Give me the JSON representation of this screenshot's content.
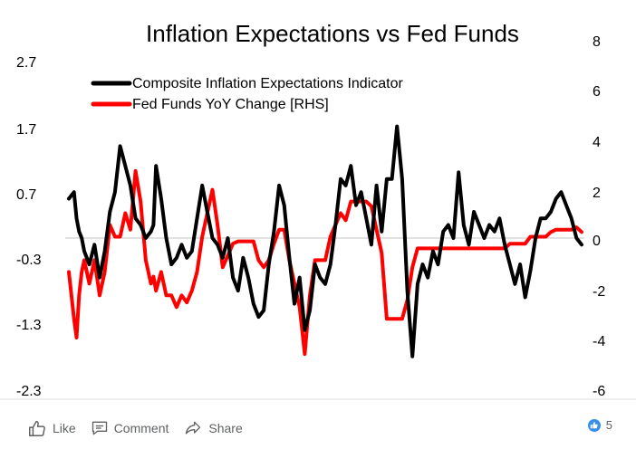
{
  "chart_data": {
    "type": "line",
    "title": "Inflation Expectations vs Fed Funds",
    "y_left": {
      "ticks": [
        "2.7",
        "1.7",
        "0.7",
        "-0.3",
        "-1.3",
        "-2.3"
      ],
      "ylim": [
        -2.3,
        2.7
      ]
    },
    "y_right": {
      "ticks": [
        "8",
        "6",
        "4",
        "2",
        "0",
        "-2",
        "-4",
        "-6"
      ],
      "ylim": [
        -6,
        8
      ]
    },
    "x_range": [
      0,
      100
    ],
    "legend_position": "top-left",
    "series": [
      {
        "name": "Composite Inflation Expectations Indicator",
        "axis": "left",
        "color": "#000000",
        "x": [
          0,
          1,
          1.5,
          2,
          2.5,
          3,
          4,
          5,
          6,
          7,
          8,
          9,
          10,
          11,
          12,
          13,
          14,
          15,
          16,
          16.5,
          17,
          18,
          19,
          20,
          21,
          22,
          23,
          24,
          25,
          26,
          27,
          28,
          29,
          30,
          31,
          32,
          33,
          34,
          35,
          36,
          37,
          38,
          39,
          40,
          41,
          42,
          43,
          44,
          45,
          46,
          47,
          48,
          49,
          50,
          51,
          52,
          53,
          54,
          55,
          56,
          57,
          58,
          59,
          60,
          61,
          62,
          63,
          64,
          65,
          66,
          67,
          68,
          69,
          70,
          71,
          72,
          73,
          74,
          75,
          76,
          77,
          78,
          79,
          80,
          81,
          82,
          83,
          84,
          85,
          86,
          87,
          88,
          89,
          90,
          91,
          92,
          93,
          94,
          95,
          96,
          97,
          98,
          99,
          100
        ],
        "y": [
          0.6,
          0.7,
          0.3,
          0.1,
          0.0,
          -0.2,
          -0.4,
          -0.1,
          -0.6,
          -0.2,
          0.4,
          0.7,
          1.4,
          1.1,
          0.8,
          0.3,
          0.2,
          0.0,
          0.1,
          0.2,
          1.1,
          0.6,
          0.0,
          -0.4,
          -0.3,
          -0.1,
          -0.3,
          -0.2,
          0.3,
          0.8,
          0.4,
          0.0,
          -0.1,
          -0.3,
          0.0,
          -0.6,
          -0.8,
          -0.3,
          -0.6,
          -1.0,
          -1.2,
          -1.1,
          -0.4,
          0.1,
          0.8,
          0.5,
          -0.3,
          -1.0,
          -0.6,
          -1.4,
          -1.1,
          -0.4,
          -0.6,
          -0.7,
          -0.4,
          0.2,
          0.9,
          0.8,
          1.1,
          0.5,
          0.7,
          0.3,
          -0.1,
          0.8,
          0.1,
          0.9,
          0.9,
          1.7,
          0.9,
          -0.8,
          -1.8,
          -0.7,
          -0.4,
          -0.6,
          -0.2,
          -0.4,
          0.1,
          0.2,
          0.0,
          1.0,
          0.2,
          -0.1,
          0.4,
          0.2,
          0.0,
          0.2,
          0.1,
          0.3,
          -0.1,
          -0.4,
          -0.7,
          -0.4,
          -0.9,
          -0.5,
          0.0,
          0.3,
          0.3,
          0.4,
          0.6,
          0.7,
          0.5,
          0.3,
          0.0,
          -0.1
        ]
      },
      {
        "name": "Fed Funds YoY Change [RHS]",
        "axis": "right",
        "color": "#ff0000",
        "x": [
          0,
          1,
          1.5,
          2,
          2.5,
          3,
          4,
          5,
          6,
          7,
          8,
          9,
          10,
          11,
          12,
          13,
          14,
          15,
          16,
          16.5,
          17,
          18,
          19,
          20,
          21,
          22,
          23,
          24,
          25,
          26,
          27,
          28,
          29,
          30,
          31,
          32,
          33,
          34,
          35,
          36,
          37,
          38,
          39,
          40,
          41,
          42,
          43,
          44,
          45,
          46,
          47,
          48,
          49,
          50,
          51,
          52,
          53,
          54,
          55,
          56,
          57,
          58,
          59,
          60,
          61,
          62,
          63,
          64,
          65,
          66,
          67,
          68,
          69,
          70,
          71,
          72,
          73,
          74,
          75,
          76,
          77,
          78,
          79,
          80,
          81,
          82,
          83,
          84,
          85,
          86,
          87,
          88,
          89,
          90,
          91,
          92,
          93,
          94,
          95,
          96,
          97,
          98,
          99,
          100
        ],
        "y": [
          -1.0,
          -3.0,
          -3.8,
          -2.0,
          -1.0,
          -0.5,
          -1.5,
          -0.5,
          -2.0,
          -1.0,
          1.0,
          0.5,
          0.5,
          1.5,
          0.8,
          3.3,
          2.0,
          -0.5,
          -1.5,
          -1.2,
          -1.8,
          -1.0,
          -2.0,
          -2.0,
          -2.5,
          -2.0,
          -2.3,
          -1.8,
          -1.0,
          0.5,
          1.5,
          2.5,
          1.0,
          -0.8,
          -0.3,
          0.2,
          0.3,
          0.3,
          0.3,
          0.3,
          -0.5,
          -0.8,
          -0.5,
          0.2,
          0.8,
          0.8,
          -0.5,
          -1.5,
          -2.5,
          -4.5,
          -2.0,
          -0.5,
          -0.5,
          -0.5,
          0.5,
          1.0,
          1.5,
          1.2,
          2.0,
          2.0,
          2.0,
          2.0,
          1.8,
          0.8,
          -0.2,
          -3.0,
          -3.0,
          -3.0,
          -3.0,
          -2.2,
          -0.8,
          0.0,
          0.0,
          0.0,
          0.0,
          0.0,
          0.0,
          0.0,
          0.0,
          0.0,
          0.0,
          0.0,
          0.0,
          0.0,
          0.0,
          0.0,
          0.0,
          0.0,
          0.0,
          0.2,
          0.2,
          0.2,
          0.2,
          0.5,
          0.5,
          0.5,
          0.5,
          0.7,
          0.8,
          0.8,
          0.8,
          0.8,
          0.9,
          0.7
        ]
      }
    ]
  },
  "social": {
    "like_label": "Like",
    "comment_label": "Comment",
    "share_label": "Share",
    "reaction_count": "5",
    "like_icon": "thumbs-up-outline-icon",
    "comment_icon": "speech-bubble-icon",
    "share_icon": "share-arrow-icon",
    "reaction_icon": "blue-thumb-badge-icon"
  }
}
